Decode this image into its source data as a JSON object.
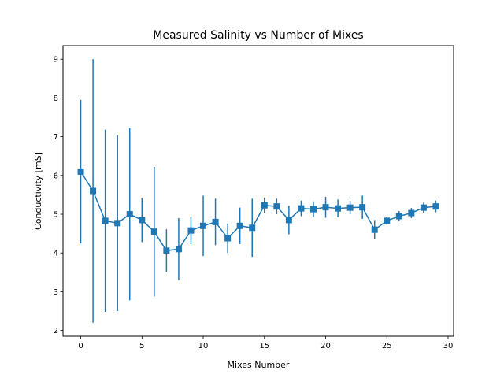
{
  "chart_data": {
    "type": "line",
    "title": "Measured Salinity vs Number of Mixes",
    "xlabel": "Mixes Number",
    "ylabel": "Conductivity [mS]",
    "xlim": [
      -1.45,
      30.45
    ],
    "ylim": [
      1.85,
      9.35
    ],
    "xticks": [
      0,
      5,
      10,
      15,
      20,
      25,
      30
    ],
    "yticks": [
      2,
      3,
      4,
      5,
      6,
      7,
      8,
      9
    ],
    "grid": false,
    "color": "#1f77b4",
    "marker": "square",
    "errorbars": true,
    "series": [
      {
        "x": [
          0,
          1,
          2,
          3,
          4,
          5,
          6,
          7,
          8,
          9,
          10,
          11,
          12,
          13,
          14,
          15,
          16,
          17,
          18,
          19,
          20,
          21,
          22,
          23,
          24,
          25,
          26,
          27,
          28,
          29
        ],
        "y": [
          6.1,
          5.6,
          4.83,
          4.77,
          5.0,
          4.85,
          4.55,
          4.06,
          4.1,
          4.58,
          4.7,
          4.8,
          4.38,
          4.7,
          4.65,
          5.23,
          5.2,
          4.85,
          5.15,
          5.13,
          5.18,
          5.15,
          5.17,
          5.18,
          4.6,
          4.83,
          4.95,
          5.03,
          5.17,
          5.2
        ],
        "yerr": [
          1.85,
          3.4,
          2.35,
          2.27,
          2.22,
          0.57,
          1.67,
          0.55,
          0.8,
          0.35,
          0.78,
          0.6,
          0.38,
          0.47,
          0.75,
          0.2,
          0.2,
          0.37,
          0.2,
          0.2,
          0.27,
          0.23,
          0.17,
          0.3,
          0.25,
          0.1,
          0.13,
          0.13,
          0.13,
          0.15
        ]
      }
    ]
  }
}
